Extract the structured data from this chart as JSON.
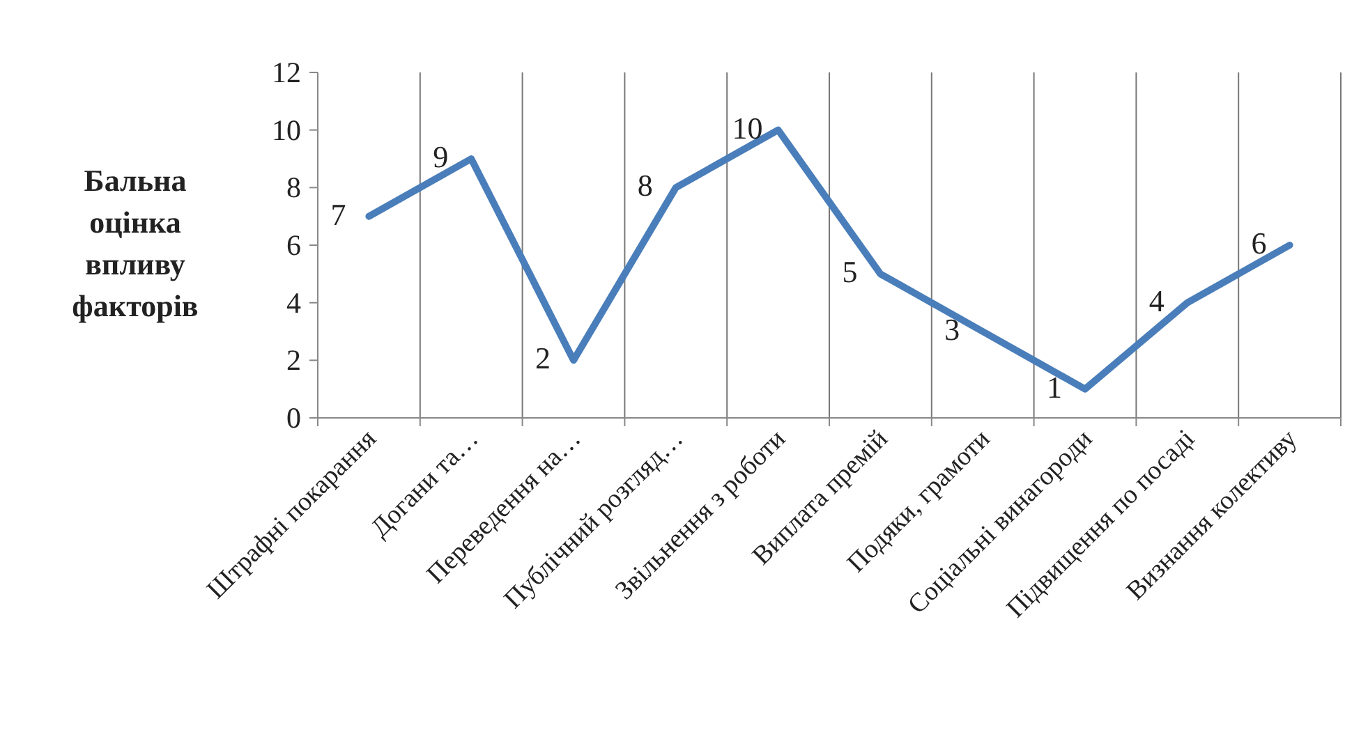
{
  "chart_data": {
    "type": "line",
    "ylabel": "Бальна оцінка впливу факторів",
    "categories": [
      "Штрафні покарання",
      "Догани та…",
      "Переведення на…",
      "Публічний розгляд…",
      "Звільнення з роботи",
      "Виплата премій",
      "Подяки, грамоти",
      "Соціальні винагороди",
      "Підвищення по посаді",
      "Визнання колективу"
    ],
    "series": [
      {
        "color": "#4a7ebb",
        "values": [
          7,
          9,
          2,
          8,
          10,
          5,
          3,
          1,
          4,
          6
        ]
      }
    ],
    "ylim": [
      0,
      12
    ],
    "yticks": [
      0,
      2,
      4,
      6,
      8,
      10,
      12
    ],
    "grid": "x",
    "data_labels": true,
    "marker": "none",
    "line_style": "solid"
  }
}
